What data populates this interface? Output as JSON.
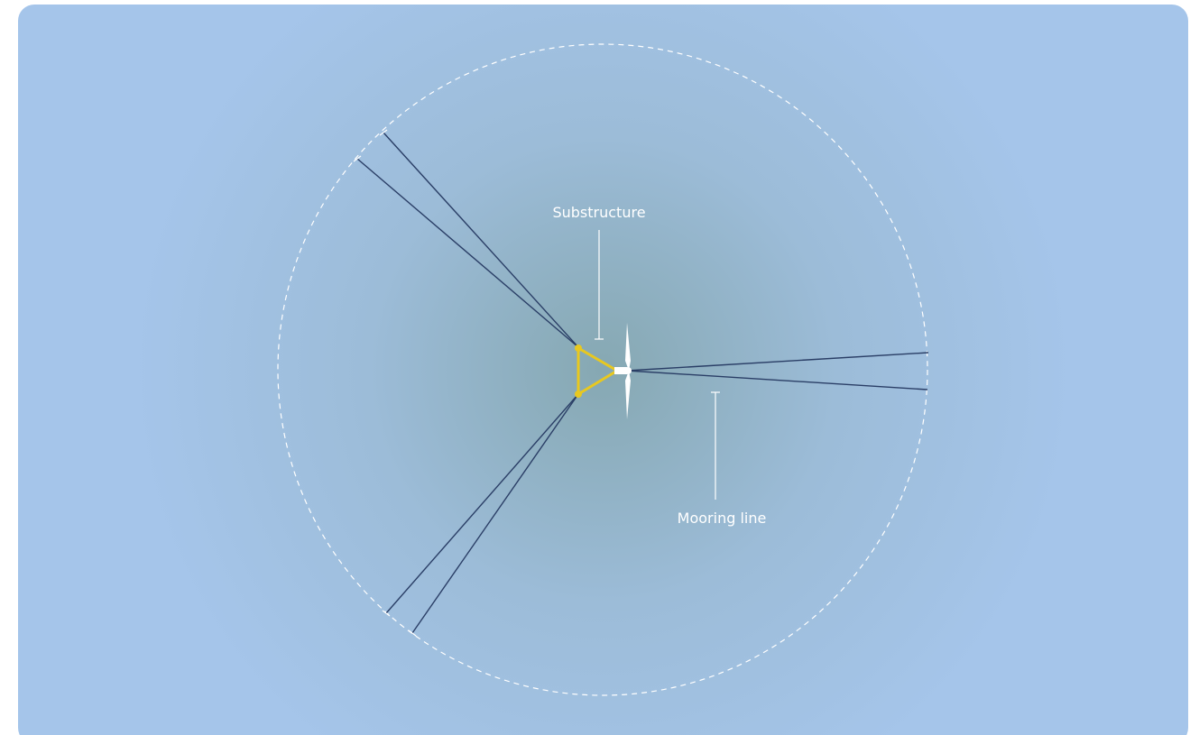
{
  "labels": {
    "substructure": "Substructure",
    "mooring_line": "Mooring line"
  }
}
